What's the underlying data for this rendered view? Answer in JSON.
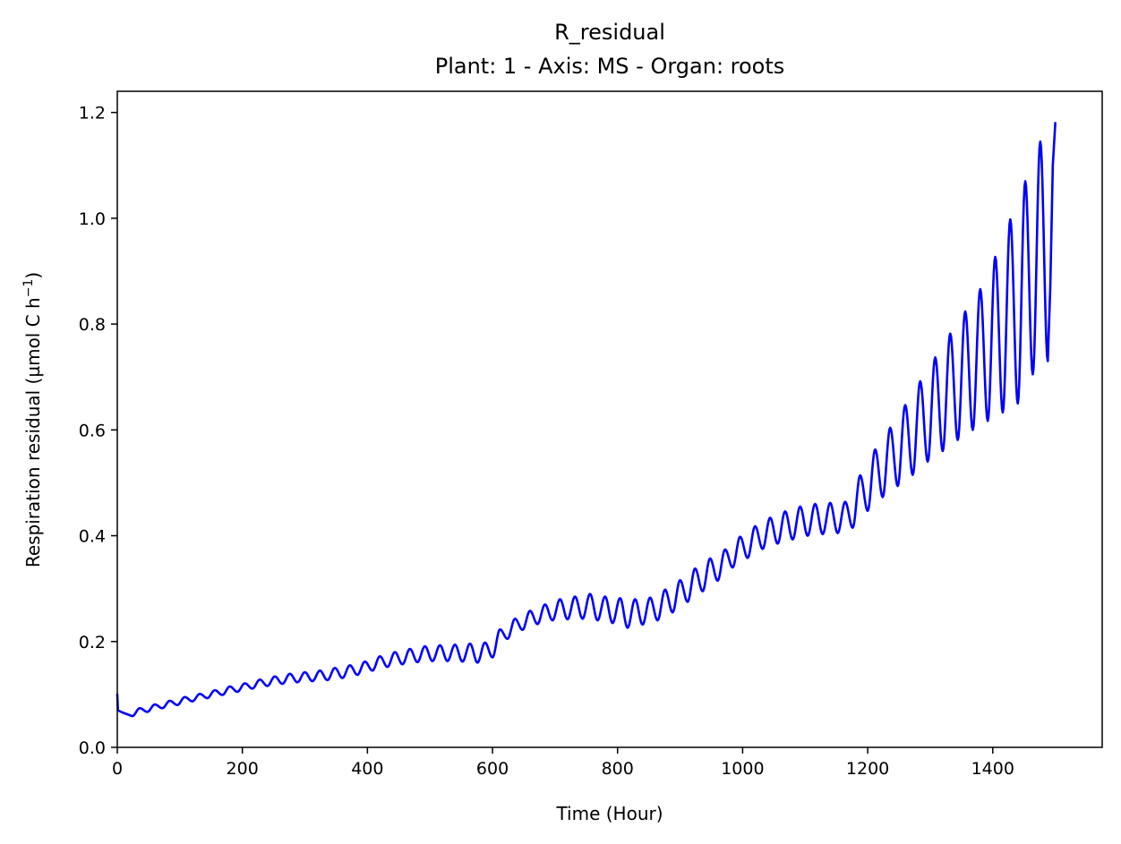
{
  "chart_data": {
    "type": "line",
    "title": "R_residual",
    "subtitle": "Plant: 1 - Axis: MS - Organ: roots",
    "xlabel": "Time (Hour)",
    "ylabel_main": "Respiration residual (µmol C h",
    "ylabel_sup": "−1",
    "ylabel_close": ")",
    "xlim": [
      0,
      1575
    ],
    "ylim": [
      0,
      1.24
    ],
    "x_ticks": [
      0,
      200,
      400,
      600,
      800,
      1000,
      1200,
      1400
    ],
    "y_ticks": [
      0.0,
      0.2,
      0.4,
      0.6,
      0.8,
      1.0,
      1.2
    ],
    "x_tick_labels": [
      "0",
      "200",
      "400",
      "600",
      "800",
      "1000",
      "1200",
      "1400"
    ],
    "y_tick_labels": [
      "0.0",
      "0.2",
      "0.4",
      "0.6",
      "0.8",
      "1.0",
      "1.2"
    ],
    "grid": false,
    "series": [
      {
        "color": "#0000ff",
        "period_hours": 24,
        "x_start": 0,
        "x_end": 1500,
        "initial_points": [
          [
            0,
            0.1
          ],
          [
            1,
            0.07
          ],
          [
            8,
            0.066
          ],
          [
            24,
            0.059
          ]
        ],
        "cycle_peaks": [
          [
            12,
            0.067
          ],
          [
            36,
            0.074
          ],
          [
            60,
            0.081
          ],
          [
            84,
            0.088
          ],
          [
            108,
            0.095
          ],
          [
            132,
            0.101
          ],
          [
            156,
            0.108
          ],
          [
            180,
            0.115
          ],
          [
            204,
            0.121
          ],
          [
            228,
            0.128
          ],
          [
            252,
            0.134
          ],
          [
            276,
            0.139
          ],
          [
            300,
            0.142
          ],
          [
            324,
            0.145
          ],
          [
            348,
            0.15
          ],
          [
            372,
            0.155
          ],
          [
            396,
            0.162
          ],
          [
            420,
            0.172
          ],
          [
            444,
            0.18
          ],
          [
            468,
            0.186
          ],
          [
            492,
            0.191
          ],
          [
            516,
            0.193
          ],
          [
            540,
            0.194
          ],
          [
            564,
            0.196
          ],
          [
            588,
            0.198
          ],
          [
            612,
            0.223
          ],
          [
            636,
            0.243
          ],
          [
            660,
            0.258
          ],
          [
            684,
            0.27
          ],
          [
            708,
            0.28
          ],
          [
            732,
            0.285
          ],
          [
            756,
            0.29
          ],
          [
            780,
            0.285
          ],
          [
            804,
            0.282
          ],
          [
            828,
            0.28
          ],
          [
            852,
            0.283
          ],
          [
            876,
            0.298
          ],
          [
            900,
            0.316
          ],
          [
            924,
            0.338
          ],
          [
            948,
            0.357
          ],
          [
            972,
            0.374
          ],
          [
            996,
            0.398
          ],
          [
            1020,
            0.418
          ],
          [
            1044,
            0.434
          ],
          [
            1068,
            0.446
          ],
          [
            1092,
            0.455
          ],
          [
            1116,
            0.46
          ],
          [
            1140,
            0.462
          ],
          [
            1164,
            0.464
          ],
          [
            1188,
            0.514
          ],
          [
            1212,
            0.563
          ],
          [
            1236,
            0.604
          ],
          [
            1260,
            0.647
          ],
          [
            1284,
            0.692
          ],
          [
            1308,
            0.737
          ],
          [
            1332,
            0.782
          ],
          [
            1356,
            0.824
          ],
          [
            1380,
            0.866
          ],
          [
            1404,
            0.927
          ],
          [
            1428,
            0.998
          ],
          [
            1452,
            1.07
          ],
          [
            1476,
            1.145
          ]
        ],
        "cycle_troughs": [
          [
            48,
            0.067
          ],
          [
            72,
            0.074
          ],
          [
            96,
            0.08
          ],
          [
            120,
            0.087
          ],
          [
            144,
            0.093
          ],
          [
            168,
            0.099
          ],
          [
            192,
            0.105
          ],
          [
            216,
            0.111
          ],
          [
            240,
            0.116
          ],
          [
            264,
            0.12
          ],
          [
            288,
            0.123
          ],
          [
            312,
            0.125
          ],
          [
            336,
            0.127
          ],
          [
            360,
            0.131
          ],
          [
            384,
            0.137
          ],
          [
            408,
            0.145
          ],
          [
            432,
            0.152
          ],
          [
            456,
            0.157
          ],
          [
            480,
            0.161
          ],
          [
            504,
            0.163
          ],
          [
            528,
            0.163
          ],
          [
            552,
            0.162
          ],
          [
            576,
            0.16
          ],
          [
            600,
            0.17
          ],
          [
            624,
            0.205
          ],
          [
            648,
            0.222
          ],
          [
            672,
            0.233
          ],
          [
            696,
            0.24
          ],
          [
            720,
            0.242
          ],
          [
            744,
            0.243
          ],
          [
            768,
            0.24
          ],
          [
            792,
            0.235
          ],
          [
            816,
            0.226
          ],
          [
            840,
            0.232
          ],
          [
            864,
            0.24
          ],
          [
            888,
            0.255
          ],
          [
            912,
            0.275
          ],
          [
            936,
            0.295
          ],
          [
            960,
            0.315
          ],
          [
            984,
            0.34
          ],
          [
            1008,
            0.358
          ],
          [
            1032,
            0.375
          ],
          [
            1056,
            0.385
          ],
          [
            1080,
            0.393
          ],
          [
            1104,
            0.4
          ],
          [
            1128,
            0.403
          ],
          [
            1152,
            0.405
          ],
          [
            1176,
            0.415
          ],
          [
            1200,
            0.447
          ],
          [
            1224,
            0.473
          ],
          [
            1248,
            0.494
          ],
          [
            1272,
            0.515
          ],
          [
            1296,
            0.54
          ],
          [
            1320,
            0.56
          ],
          [
            1344,
            0.581
          ],
          [
            1368,
            0.6
          ],
          [
            1392,
            0.617
          ],
          [
            1416,
            0.633
          ],
          [
            1440,
            0.65
          ],
          [
            1464,
            0.705
          ],
          [
            1488,
            0.73
          ]
        ],
        "final_points": [
          [
            1492,
            0.87
          ],
          [
            1496,
            1.1
          ],
          [
            1500,
            1.18
          ]
        ]
      }
    ]
  }
}
